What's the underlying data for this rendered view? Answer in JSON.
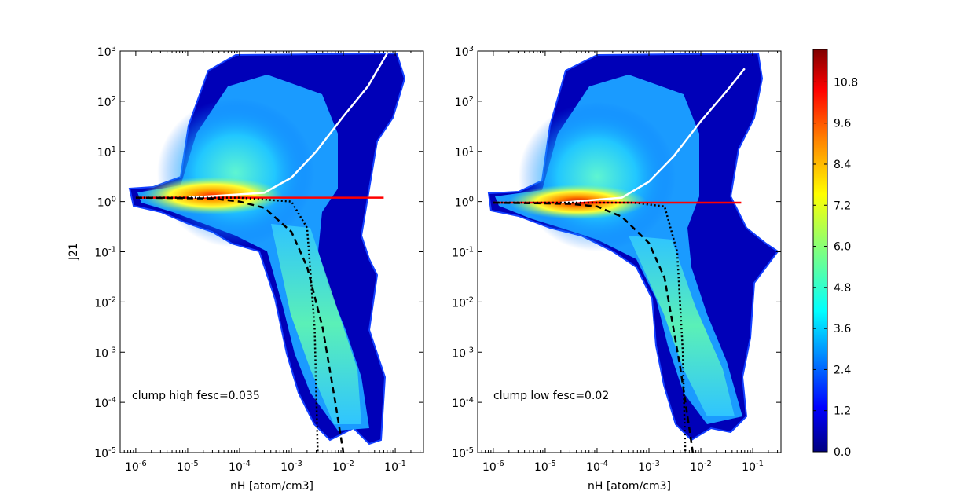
{
  "chart_data": [
    {
      "type": "heatmap",
      "panel": "left",
      "annotation": "clump high fesc=0.035",
      "xlabel": "nH [atom/cm3]",
      "ylabel": "J21",
      "x_scale": "log",
      "y_scale": "log",
      "xlim": [
        5e-07,
        0.35
      ],
      "ylim": [
        1e-05,
        1000
      ],
      "x_ticks": [
        {
          "base": "10",
          "exp": "-6",
          "value": 1e-06
        },
        {
          "base": "10",
          "exp": "-5",
          "value": 1e-05
        },
        {
          "base": "10",
          "exp": "-4",
          "value": 0.0001
        },
        {
          "base": "10",
          "exp": "-3",
          "value": 0.001
        },
        {
          "base": "10",
          "exp": "-2",
          "value": 0.01
        },
        {
          "base": "10",
          "exp": "-1",
          "value": 0.1
        }
      ],
      "y_ticks": [
        {
          "base": "10",
          "exp": "3",
          "value": 1000
        },
        {
          "base": "10",
          "exp": "2",
          "value": 100
        },
        {
          "base": "10",
          "exp": "1",
          "value": 10
        },
        {
          "base": "10",
          "exp": "0",
          "value": 1
        },
        {
          "base": "10",
          "exp": "-1",
          "value": 0.1
        },
        {
          "base": "10",
          "exp": "-2",
          "value": 0.01
        },
        {
          "base": "10",
          "exp": "-3",
          "value": 0.001
        },
        {
          "base": "10",
          "exp": "-4",
          "value": 0.0001
        },
        {
          "base": "10",
          "exp": "-5",
          "value": 1e-05
        }
      ],
      "density_peak": {
        "x": 4e-05,
        "y": 1.2
      },
      "series": [
        {
          "style": "solid",
          "color": "#ff0000",
          "x": [
            1e-06,
            0.06
          ],
          "y": [
            1.2,
            1.2
          ]
        },
        {
          "style": "solid",
          "color": "#ffffff",
          "x": [
            1e-05,
            0.0003,
            0.001,
            0.003,
            0.01,
            0.03,
            0.07
          ],
          "y": [
            1.2,
            1.5,
            3,
            10,
            50,
            200,
            900
          ]
        },
        {
          "style": "dashed",
          "color": "#000000",
          "x": [
            1e-06,
            3e-05,
            0.0001,
            0.0003,
            0.001,
            0.002,
            0.004,
            0.007,
            0.01
          ],
          "y": [
            1.2,
            1.15,
            1.0,
            0.75,
            0.25,
            0.05,
            0.003,
            0.0001,
            1e-05
          ]
        },
        {
          "style": "dotted",
          "color": "#000000",
          "x": [
            1e-06,
            0.0001,
            0.001,
            0.002,
            0.0028,
            0.0032
          ],
          "y": [
            1.2,
            1.2,
            1.0,
            0.3,
            0.003,
            1e-05
          ]
        }
      ]
    },
    {
      "type": "heatmap",
      "panel": "right",
      "annotation": "clump low fesc=0.02",
      "xlabel": "nH [atom/cm3]",
      "ylabel": "",
      "x_scale": "log",
      "y_scale": "log",
      "xlim": [
        5e-07,
        0.35
      ],
      "ylim": [
        1e-05,
        1000
      ],
      "x_ticks": [
        {
          "base": "10",
          "exp": "-6",
          "value": 1e-06
        },
        {
          "base": "10",
          "exp": "-5",
          "value": 1e-05
        },
        {
          "base": "10",
          "exp": "-4",
          "value": 0.0001
        },
        {
          "base": "10",
          "exp": "-3",
          "value": 0.001
        },
        {
          "base": "10",
          "exp": "-2",
          "value": 0.01
        },
        {
          "base": "10",
          "exp": "-1",
          "value": 0.1
        }
      ],
      "y_ticks": [
        {
          "base": "10",
          "exp": "3",
          "value": 1000
        },
        {
          "base": "10",
          "exp": "2",
          "value": 100
        },
        {
          "base": "10",
          "exp": "1",
          "value": 10
        },
        {
          "base": "10",
          "exp": "0",
          "value": 1
        },
        {
          "base": "10",
          "exp": "-1",
          "value": 0.1
        },
        {
          "base": "10",
          "exp": "-2",
          "value": 0.01
        },
        {
          "base": "10",
          "exp": "-3",
          "value": 0.001
        },
        {
          "base": "10",
          "exp": "-4",
          "value": 0.0001
        },
        {
          "base": "10",
          "exp": "-5",
          "value": 1e-05
        }
      ],
      "density_peak": {
        "x": 4e-05,
        "y": 0.95
      },
      "series": [
        {
          "style": "solid",
          "color": "#ff0000",
          "x": [
            1e-06,
            0.06
          ],
          "y": [
            0.95,
            0.95
          ]
        },
        {
          "style": "solid",
          "color": "#ffffff",
          "x": [
            2e-05,
            0.0003,
            0.001,
            0.003,
            0.01,
            0.03,
            0.07
          ],
          "y": [
            0.95,
            1.2,
            2.5,
            8,
            40,
            150,
            450
          ]
        },
        {
          "style": "dashed",
          "color": "#000000",
          "x": [
            1e-06,
            3e-05,
            0.0001,
            0.0003,
            0.001,
            0.002,
            0.004,
            0.006,
            0.007
          ],
          "y": [
            0.95,
            0.9,
            0.8,
            0.5,
            0.15,
            0.03,
            0.0005,
            3e-05,
            1e-05
          ]
        },
        {
          "style": "dotted",
          "color": "#000000",
          "x": [
            1e-06,
            0.0005,
            0.002,
            0.0035,
            0.0045,
            0.005
          ],
          "y": [
            0.95,
            0.95,
            0.8,
            0.1,
            0.001,
            1e-05
          ]
        }
      ]
    }
  ],
  "colorbar": {
    "min": 0,
    "max": 11.75,
    "colors": [
      "#00007f",
      "#0000ff",
      "#007fff",
      "#00ffff",
      "#7fff7f",
      "#ffff00",
      "#ff7f00",
      "#ff0000",
      "#7f0000"
    ],
    "tick_labels": [
      "0.0",
      "1.2",
      "2.4",
      "3.6",
      "4.8",
      "6.0",
      "7.2",
      "8.4",
      "9.6",
      "10.8"
    ],
    "tick_values": [
      0.0,
      1.2,
      2.4,
      3.6,
      4.8,
      6.0,
      7.2,
      8.4,
      9.6,
      10.8
    ]
  }
}
